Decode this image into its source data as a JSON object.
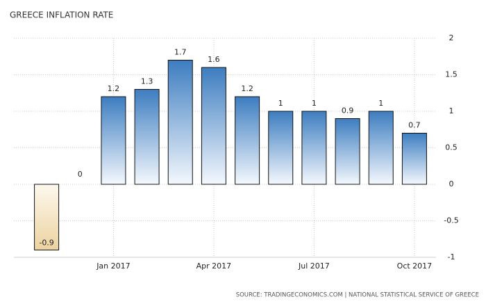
{
  "chart_data": {
    "type": "bar",
    "title": "GREECE INFLATION RATE",
    "source": "SOURCE: TRADINGECONOMICS.COM | NATIONAL STATISTICAL SERVICE OF GREECE",
    "categories": [
      null,
      null,
      "Jan 2017",
      null,
      null,
      "Apr 2017",
      null,
      null,
      "Jul 2017",
      null,
      null,
      "Oct 2017"
    ],
    "values": [
      -0.9,
      0,
      1.2,
      1.3,
      1.7,
      1.6,
      1.2,
      1,
      1,
      0.9,
      1,
      0.7
    ],
    "positive_color": "#3d7dc0",
    "negative_color": "#ecd3a0",
    "ylim": [
      -1,
      2
    ],
    "yticks": [
      -1,
      -0.5,
      0,
      0.5,
      1,
      1.5,
      2
    ],
    "grid": true
  }
}
